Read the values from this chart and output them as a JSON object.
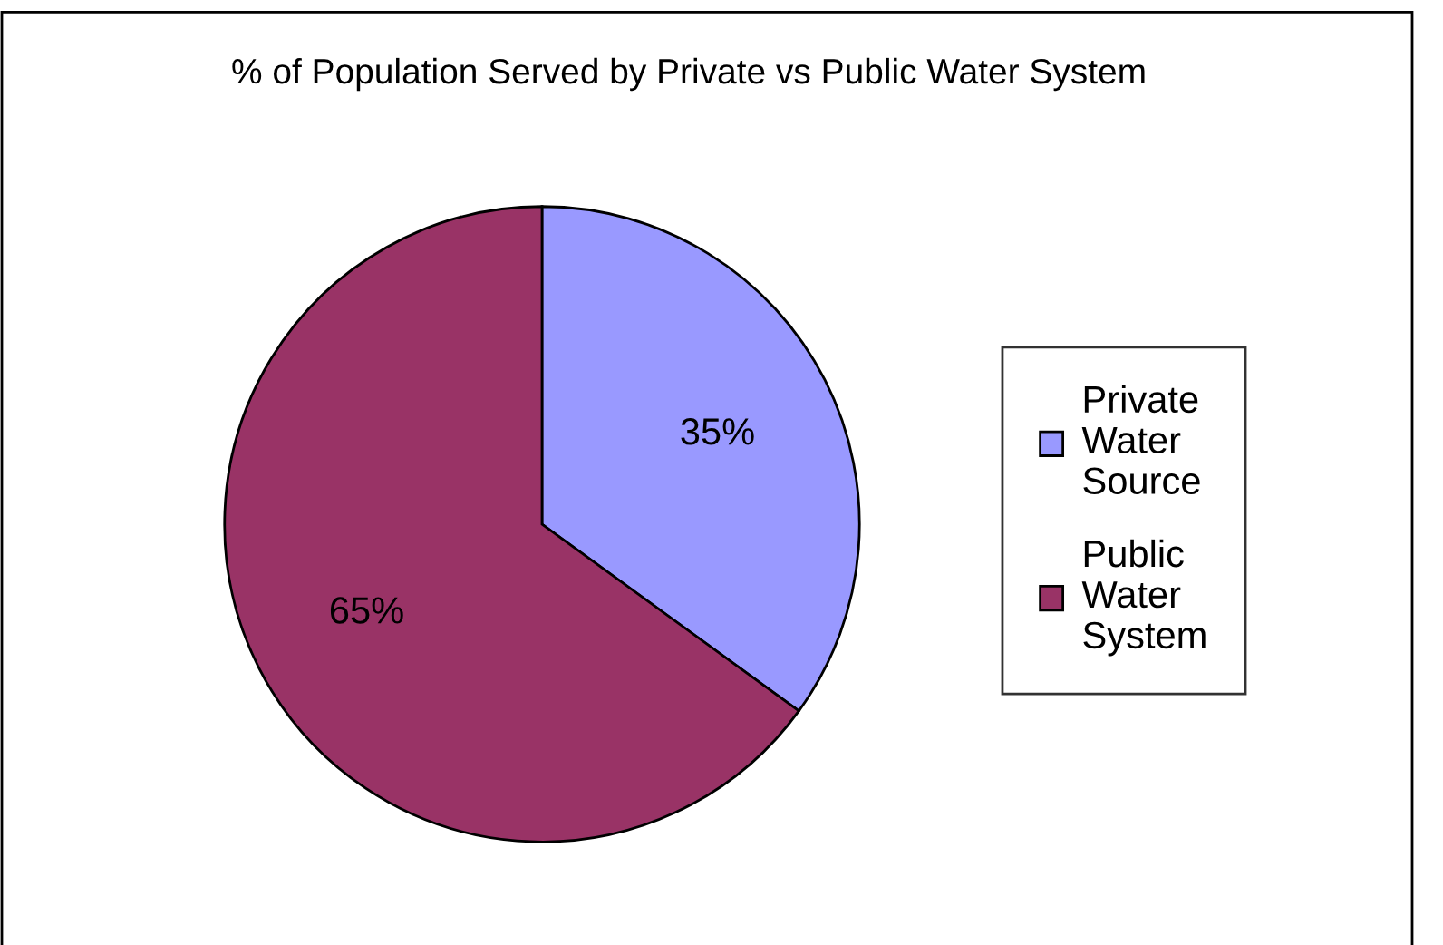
{
  "chart_data": {
    "type": "pie",
    "title": "% of Population Served by Private vs Public Water System",
    "categories": [
      "Private Water Source",
      "Public Water System"
    ],
    "values": [
      35,
      65
    ],
    "value_labels": [
      "35%",
      "65%"
    ],
    "colors": [
      "#9999ff",
      "#993366"
    ],
    "legend": "right"
  }
}
